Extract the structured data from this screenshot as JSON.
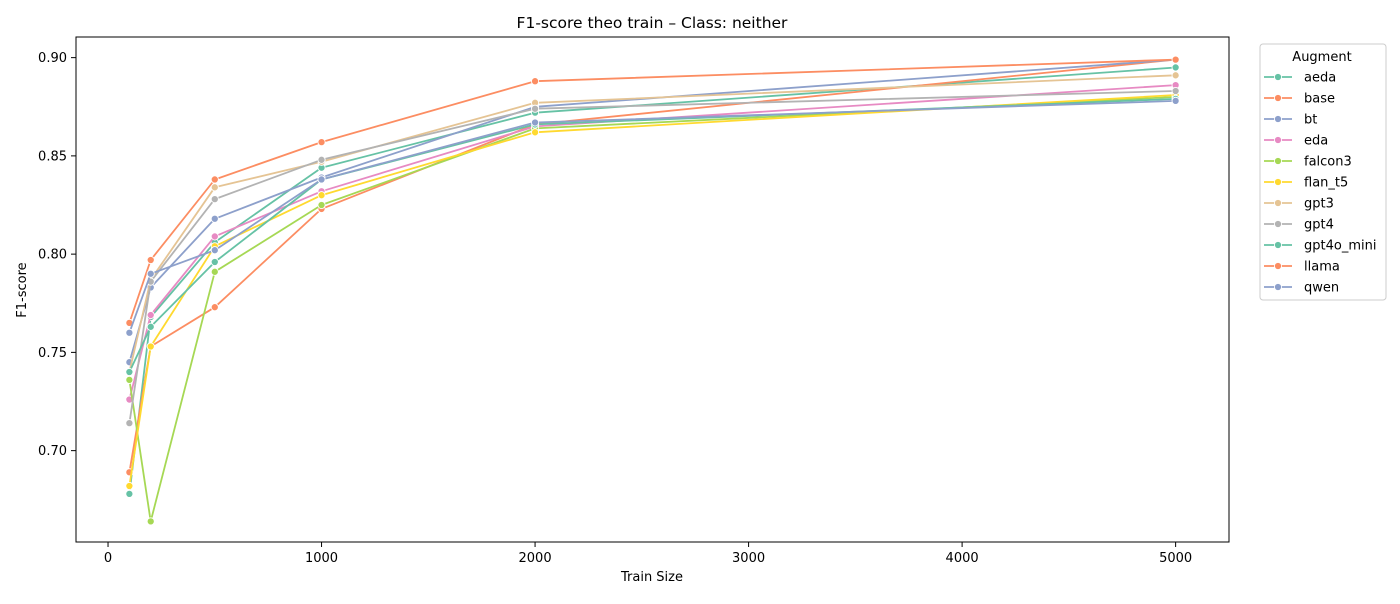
{
  "chart_data": {
    "type": "line",
    "title": "F1-score theo train – Class: neither",
    "xlabel": "Train Size",
    "ylabel": "F1-score",
    "xlim": [
      -150,
      5250
    ],
    "ylim": [
      0.6535,
      0.9105
    ],
    "xticks": [
      0,
      1000,
      2000,
      3000,
      4000,
      5000
    ],
    "yticks": [
      0.7,
      0.75,
      0.8,
      0.85,
      0.9
    ],
    "x": [
      100,
      200,
      500,
      1000,
      2000,
      5000
    ],
    "grid": false,
    "legend_position": "outside-right",
    "legend_title": "Augment",
    "series": [
      {
        "name": "aeda",
        "color": "#66c2a5",
        "values": [
          0.678,
          0.768,
          0.806,
          0.844,
          0.872,
          0.895
        ]
      },
      {
        "name": "base",
        "color": "#fc8d62",
        "values": [
          0.689,
          0.753,
          0.773,
          0.823,
          0.866,
          0.899
        ]
      },
      {
        "name": "bt",
        "color": "#8da0cb",
        "values": [
          0.745,
          0.783,
          0.818,
          0.839,
          0.875,
          0.899
        ]
      },
      {
        "name": "eda",
        "color": "#e78ac3",
        "values": [
          0.726,
          0.769,
          0.809,
          0.832,
          0.865,
          0.886
        ]
      },
      {
        "name": "falcon3",
        "color": "#a6d854",
        "values": [
          0.736,
          0.664,
          0.791,
          0.825,
          0.864,
          0.88
        ]
      },
      {
        "name": "flan_t5",
        "color": "#ffd92f",
        "values": [
          0.682,
          0.753,
          0.804,
          0.83,
          0.862,
          0.881
        ]
      },
      {
        "name": "gpt3",
        "color": "#e5c494",
        "values": [
          0.74,
          0.787,
          0.834,
          0.847,
          0.877,
          0.891
        ]
      },
      {
        "name": "gpt4",
        "color": "#b3b3b3",
        "values": [
          0.714,
          0.786,
          0.828,
          0.848,
          0.874,
          0.883
        ]
      },
      {
        "name": "gpt4o_mini",
        "color": "#66c2a5",
        "values": [
          0.74,
          0.763,
          0.796,
          0.838,
          0.866,
          0.879
        ]
      },
      {
        "name": "llama",
        "color": "#fc8d62",
        "values": [
          0.765,
          0.797,
          0.838,
          0.857,
          0.888,
          0.899
        ]
      },
      {
        "name": "qwen",
        "color": "#8da0cb",
        "values": [
          0.76,
          0.79,
          0.802,
          0.838,
          0.867,
          0.878
        ]
      }
    ]
  }
}
